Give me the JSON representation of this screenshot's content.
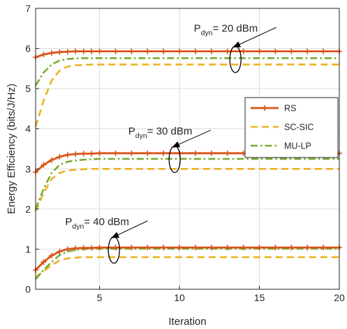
{
  "chart_data": {
    "type": "line",
    "title": "",
    "xlabel": "Iteration",
    "ylabel": "Energy Efficiency (bits/J/Hz)",
    "xlim": [
      1,
      20
    ],
    "ylim": [
      0,
      7
    ],
    "xticks": [
      5,
      10,
      15,
      20
    ],
    "yticks": [
      0,
      1,
      2,
      3,
      4,
      5,
      6,
      7
    ],
    "grid": true,
    "legend": {
      "position": "right",
      "entries": [
        "RS",
        "SC-SIC",
        "MU-LP"
      ]
    },
    "x": [
      1,
      1.5,
      2,
      2.5,
      3,
      3.5,
      4,
      4.5,
      5,
      6,
      7,
      8,
      9,
      10,
      11,
      12,
      13,
      14,
      15,
      16,
      17,
      18,
      19,
      20
    ],
    "groups": [
      {
        "annotation": {
          "P": "P",
          "sub": "dyn",
          "value": "= 20 dBm"
        },
        "series": [
          {
            "name": "RS",
            "color": "#d95319",
            "style": "solid-plus",
            "values": [
              5.78,
              5.85,
              5.89,
              5.91,
              5.92,
              5.93,
              5.93,
              5.93,
              5.93,
              5.93,
              5.93,
              5.93,
              5.93,
              5.93,
              5.93,
              5.93,
              5.93,
              5.93,
              5.93,
              5.93,
              5.93,
              5.93,
              5.93,
              5.93
            ]
          },
          {
            "name": "SC-SIC",
            "color": "#edb120",
            "style": "dashed",
            "values": [
              4.05,
              4.7,
              5.2,
              5.45,
              5.55,
              5.58,
              5.59,
              5.6,
              5.6,
              5.6,
              5.6,
              5.6,
              5.6,
              5.6,
              5.6,
              5.6,
              5.6,
              5.6,
              5.6,
              5.6,
              5.6,
              5.6,
              5.6,
              5.6
            ]
          },
          {
            "name": "MU-LP",
            "color": "#77ac30",
            "style": "dashdot",
            "values": [
              5.08,
              5.4,
              5.6,
              5.7,
              5.74,
              5.75,
              5.76,
              5.76,
              5.76,
              5.76,
              5.76,
              5.76,
              5.76,
              5.76,
              5.76,
              5.76,
              5.76,
              5.76,
              5.76,
              5.76,
              5.76,
              5.76,
              5.76,
              5.76
            ]
          }
        ]
      },
      {
        "annotation": {
          "P": "P",
          "sub": "dyn",
          "value": "= 30 dBm"
        },
        "series": [
          {
            "name": "RS",
            "color": "#d95319",
            "style": "solid-plus",
            "values": [
              2.92,
              3.1,
              3.22,
              3.3,
              3.35,
              3.37,
              3.38,
              3.38,
              3.39,
              3.39,
              3.39,
              3.39,
              3.39,
              3.39,
              3.39,
              3.39,
              3.39,
              3.39,
              3.39,
              3.39,
              3.39,
              3.39,
              3.39,
              3.39
            ]
          },
          {
            "name": "SC-SIC",
            "color": "#edb120",
            "style": "dashed",
            "values": [
              1.95,
              2.4,
              2.75,
              2.9,
              2.96,
              2.98,
              2.99,
              3.0,
              3.0,
              3.0,
              3.0,
              3.0,
              3.0,
              3.0,
              3.0,
              3.0,
              3.0,
              3.0,
              3.0,
              3.0,
              3.0,
              3.0,
              3.0,
              3.0
            ]
          },
          {
            "name": "MU-LP",
            "color": "#77ac30",
            "style": "dashdot",
            "values": [
              2.0,
              2.5,
              2.9,
              3.1,
              3.18,
              3.21,
              3.23,
              3.24,
              3.25,
              3.25,
              3.25,
              3.25,
              3.25,
              3.25,
              3.25,
              3.25,
              3.25,
              3.25,
              3.25,
              3.25,
              3.25,
              3.25,
              3.25,
              3.25
            ]
          }
        ]
      },
      {
        "annotation": {
          "P": "P",
          "sub": "dyn",
          "value": "= 40 dBm"
        },
        "series": [
          {
            "name": "RS",
            "color": "#d95319",
            "style": "solid-plus",
            "values": [
              0.48,
              0.68,
              0.84,
              0.94,
              1.0,
              1.02,
              1.03,
              1.03,
              1.04,
              1.04,
              1.04,
              1.04,
              1.04,
              1.04,
              1.04,
              1.04,
              1.04,
              1.04,
              1.04,
              1.04,
              1.04,
              1.04,
              1.04,
              1.04
            ]
          },
          {
            "name": "SC-SIC",
            "color": "#edb120",
            "style": "dashed",
            "values": [
              0.3,
              0.45,
              0.6,
              0.72,
              0.77,
              0.79,
              0.8,
              0.8,
              0.8,
              0.8,
              0.8,
              0.8,
              0.8,
              0.8,
              0.8,
              0.8,
              0.8,
              0.8,
              0.8,
              0.8,
              0.8,
              0.8,
              0.8,
              0.8
            ]
          },
          {
            "name": "MU-LP",
            "color": "#77ac30",
            "style": "dashdot",
            "values": [
              0.25,
              0.48,
              0.68,
              0.85,
              0.94,
              0.98,
              1.0,
              1.01,
              1.01,
              1.01,
              1.01,
              1.01,
              1.01,
              1.01,
              1.01,
              1.01,
              1.01,
              1.01,
              1.01,
              1.01,
              1.01,
              1.01,
              1.01,
              1.01
            ]
          }
        ]
      }
    ]
  }
}
